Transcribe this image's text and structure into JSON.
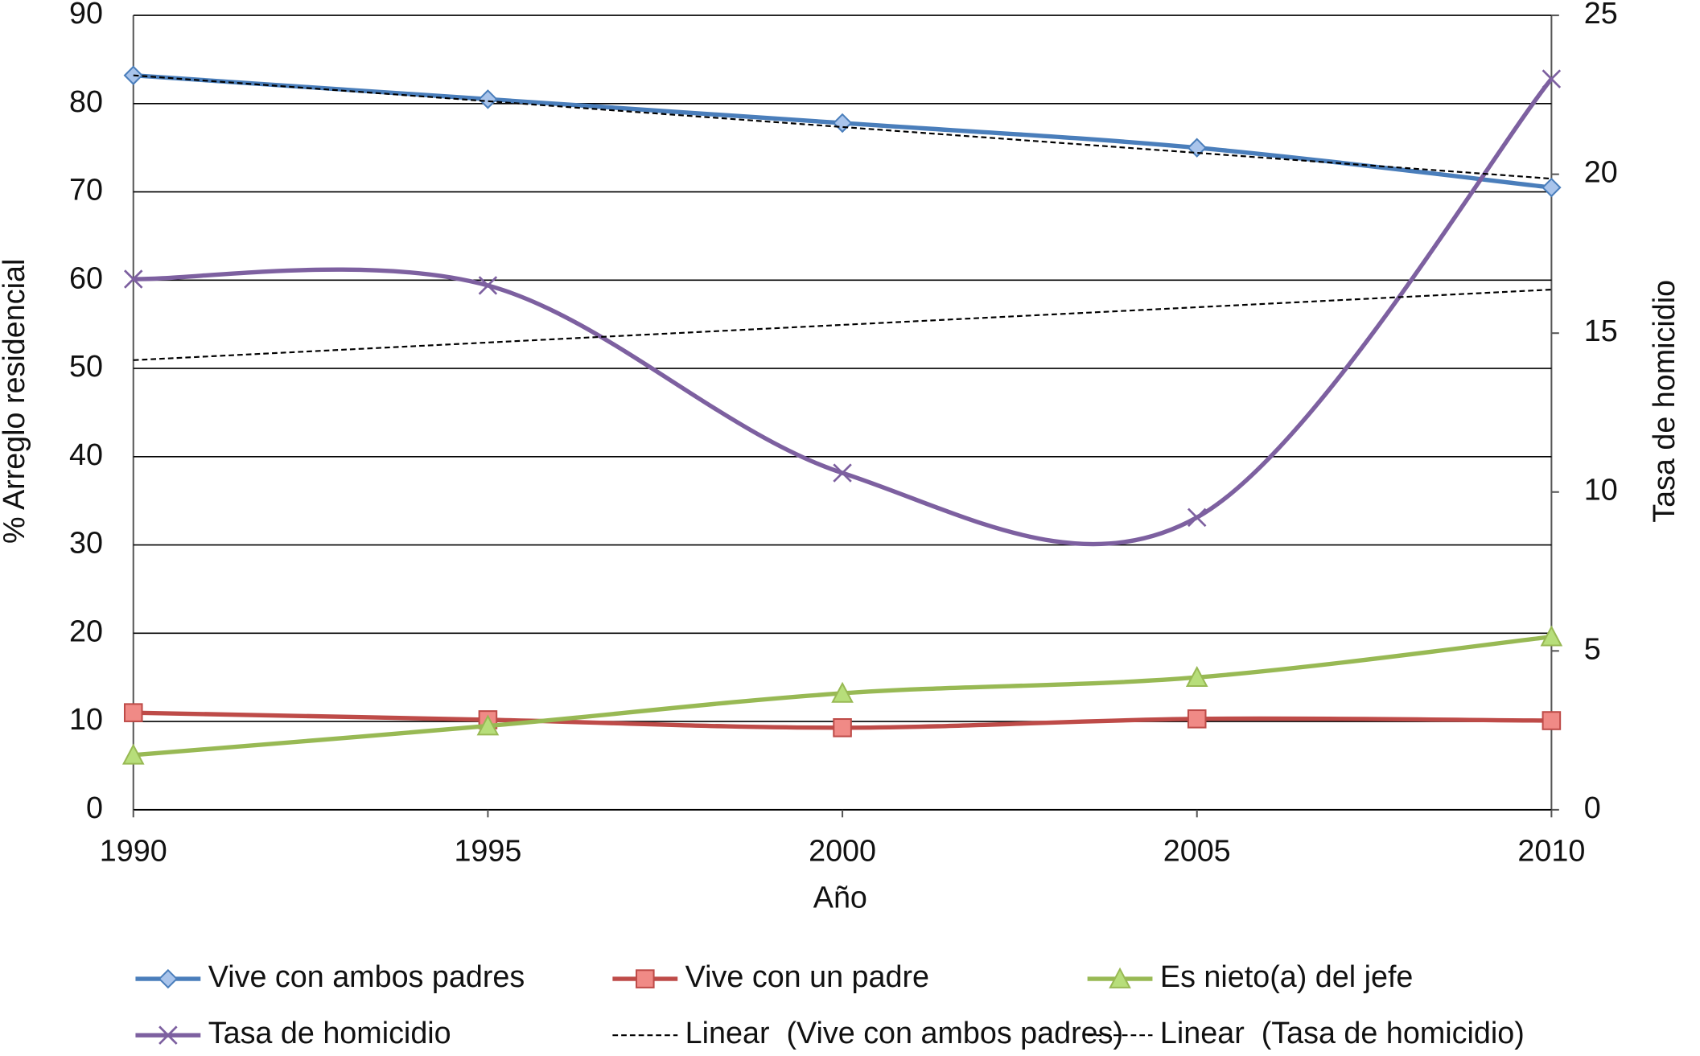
{
  "chart_data": {
    "type": "line",
    "x_label": "Año",
    "y_label": "% Arreglo residencial",
    "y2_label": "Tasa de homicidio",
    "x": [
      1990,
      1995,
      2000,
      2005,
      2010
    ],
    "xlim": [
      1990,
      2010
    ],
    "xticks": [
      1990,
      1995,
      2000,
      2005,
      2010
    ],
    "ylim": [
      0,
      90
    ],
    "yticks": [
      0,
      10,
      20,
      30,
      40,
      50,
      60,
      70,
      80,
      90
    ],
    "y2lim": [
      0,
      25
    ],
    "y2ticks": [
      0,
      5,
      10,
      15,
      20,
      25
    ],
    "grid": true,
    "legend": "bottom",
    "series": [
      {
        "name": "Vive con ambos padres",
        "color": "#4a7ebb",
        "marker": "diamond",
        "values": [
          83.2,
          80.5,
          77.8,
          75.0,
          70.5
        ]
      },
      {
        "name": "Vive con un padre",
        "color": "#be4b48",
        "marker": "square",
        "values": [
          11.0,
          10.2,
          9.3,
          10.3,
          10.1
        ]
      },
      {
        "name": "Es nieto(a) del jefe",
        "color": "#98b954",
        "marker": "triangle",
        "values": [
          6.2,
          9.5,
          13.2,
          15.0,
          19.6
        ]
      },
      {
        "name": "Tasa de homicidio",
        "color": "#7d60a0",
        "marker": "x",
        "axis": "y2",
        "values": [
          16.7,
          16.5,
          10.6,
          9.2,
          23.0
        ]
      },
      {
        "name": "Linear  (Vive con ambos padres)",
        "color": "#000000",
        "dash": true,
        "x": [
          1990,
          2010
        ],
        "values": [
          83.2,
          71.5
        ]
      },
      {
        "name": "Linear  (Tasa de homicidio)",
        "color": "#000000",
        "dash": true,
        "axis": "y2",
        "x": [
          1990,
          2010
        ],
        "values": [
          14.15,
          16.37
        ]
      }
    ]
  }
}
